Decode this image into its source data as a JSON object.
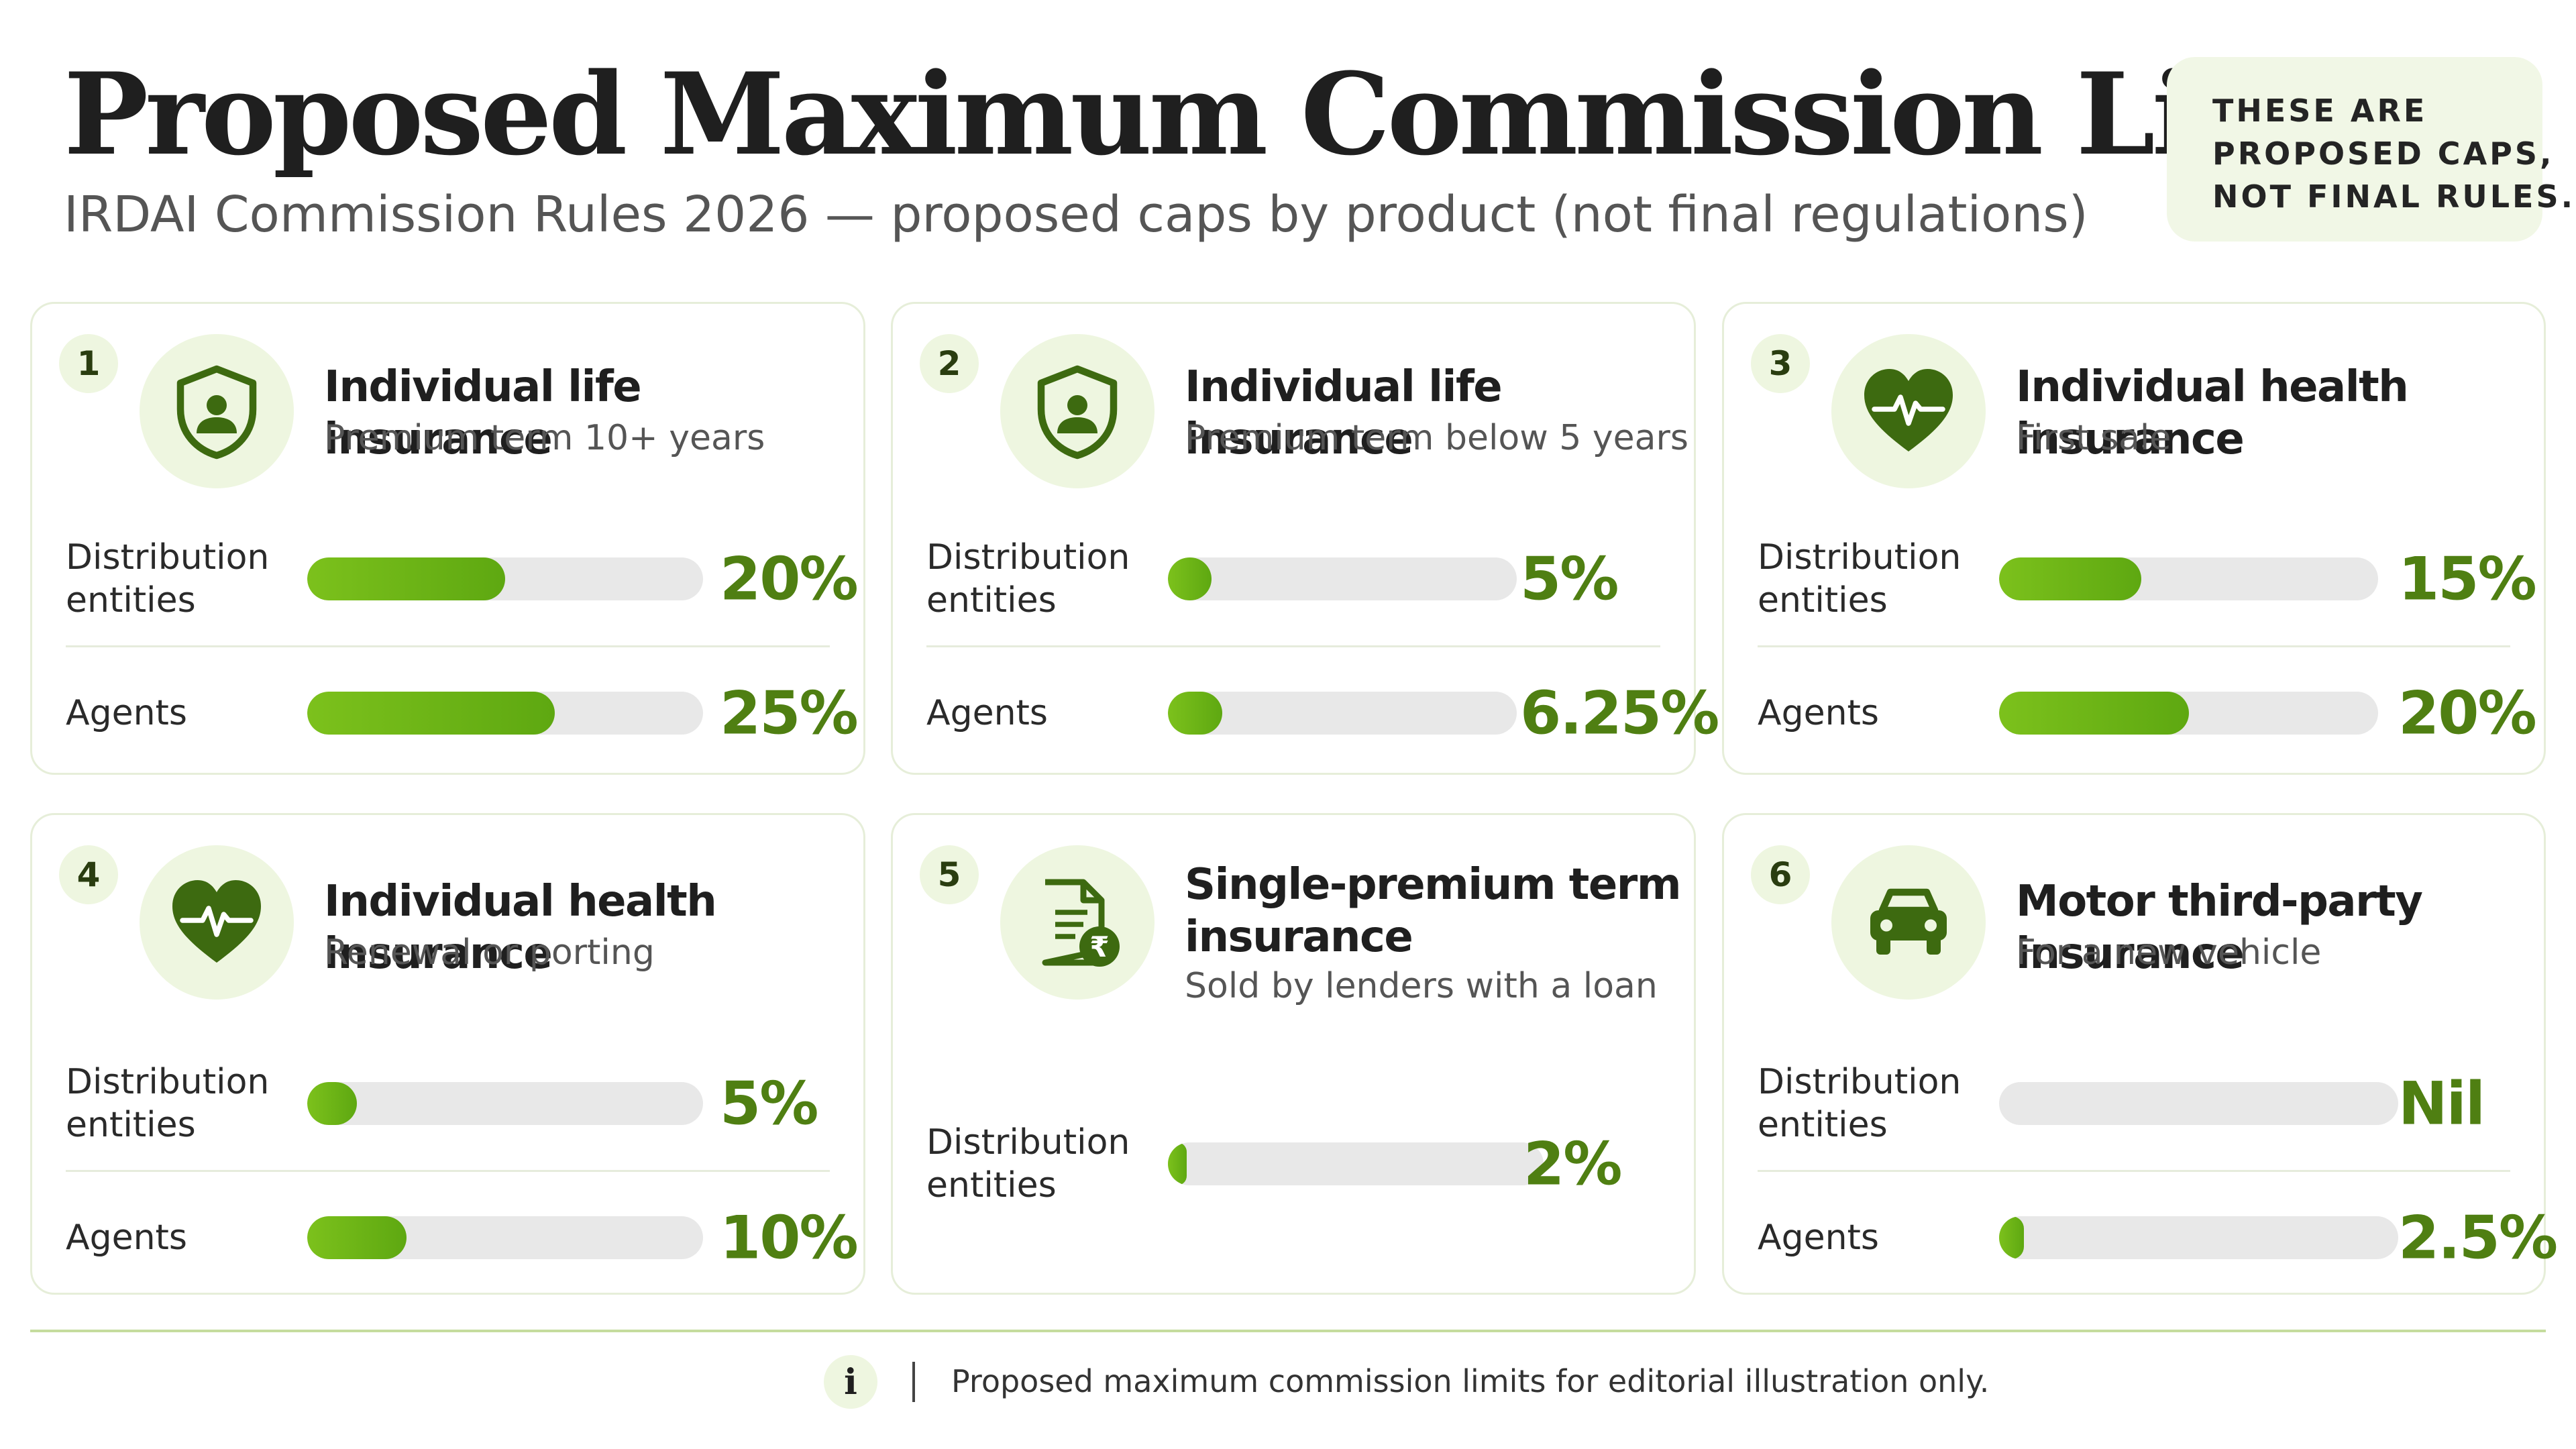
{
  "title": "Proposed Maximum Commission Limits",
  "subtitle": "IRDAI Commission Rules 2026 — proposed caps by product (not final regulations)",
  "callout_lines": [
    "THESE ARE",
    "PROPOSED CAPS,",
    "NOT FINAL RULES."
  ],
  "colors": {
    "accent": "#6cb416",
    "value_text": "#4f7f12",
    "icon": "#3d6a10",
    "track": "#e8e8e8",
    "panel": "#eef6e0"
  },
  "chart_data": {
    "type": "bar",
    "title": "Proposed Maximum Commission Limits",
    "subtitle": "IRDAI Commission Rules 2026 — proposed caps by product (not final regulations)",
    "value_unit": "%",
    "xlim": [
      0,
      40
    ],
    "panels": [
      {
        "number": "1",
        "icon": "shield-user-icon",
        "title": "Individual life insurance",
        "subtitle": "Premium term 10+ years",
        "rows": [
          {
            "label": "Distribution entities",
            "value": 20,
            "display": "20%"
          },
          {
            "label": "Agents",
            "value": 25,
            "display": "25%"
          }
        ]
      },
      {
        "number": "2",
        "icon": "shield-user-icon",
        "title": "Individual life insurance",
        "subtitle": "Premium term below 5 years",
        "rows": [
          {
            "label": "Distribution entities",
            "value": 5,
            "display": "5%"
          },
          {
            "label": "Agents",
            "value": 6.25,
            "display": "6.25%"
          }
        ]
      },
      {
        "number": "3",
        "icon": "heart-pulse-icon",
        "title": "Individual health insurance",
        "subtitle": "First sale",
        "rows": [
          {
            "label": "Distribution entities",
            "value": 15,
            "display": "15%"
          },
          {
            "label": "Agents",
            "value": 20,
            "display": "20%"
          }
        ]
      },
      {
        "number": "4",
        "icon": "heart-pulse-icon",
        "title": "Individual health insurance",
        "subtitle": "Renewal or porting",
        "rows": [
          {
            "label": "Distribution entities",
            "value": 5,
            "display": "5%"
          },
          {
            "label": "Agents",
            "value": 10,
            "display": "10%"
          }
        ]
      },
      {
        "number": "5",
        "icon": "document-rupee-icon",
        "title": "Single-premium term insurance",
        "subtitle": "Sold by lenders with a loan",
        "rows": [
          {
            "label": "Distribution entities",
            "value": 2,
            "display": "2%"
          }
        ]
      },
      {
        "number": "6",
        "icon": "car-icon",
        "title": "Motor third-party insurance",
        "subtitle": "For a new vehicle",
        "rows": [
          {
            "label": "Distribution entities",
            "value": 0,
            "display": "Nil"
          },
          {
            "label": "Agents",
            "value": 2.5,
            "display": "2.5%"
          }
        ]
      }
    ]
  },
  "footer": {
    "icon": "info-icon",
    "info_glyph": "i",
    "note": "Proposed maximum commission limits for editorial illustration only."
  }
}
